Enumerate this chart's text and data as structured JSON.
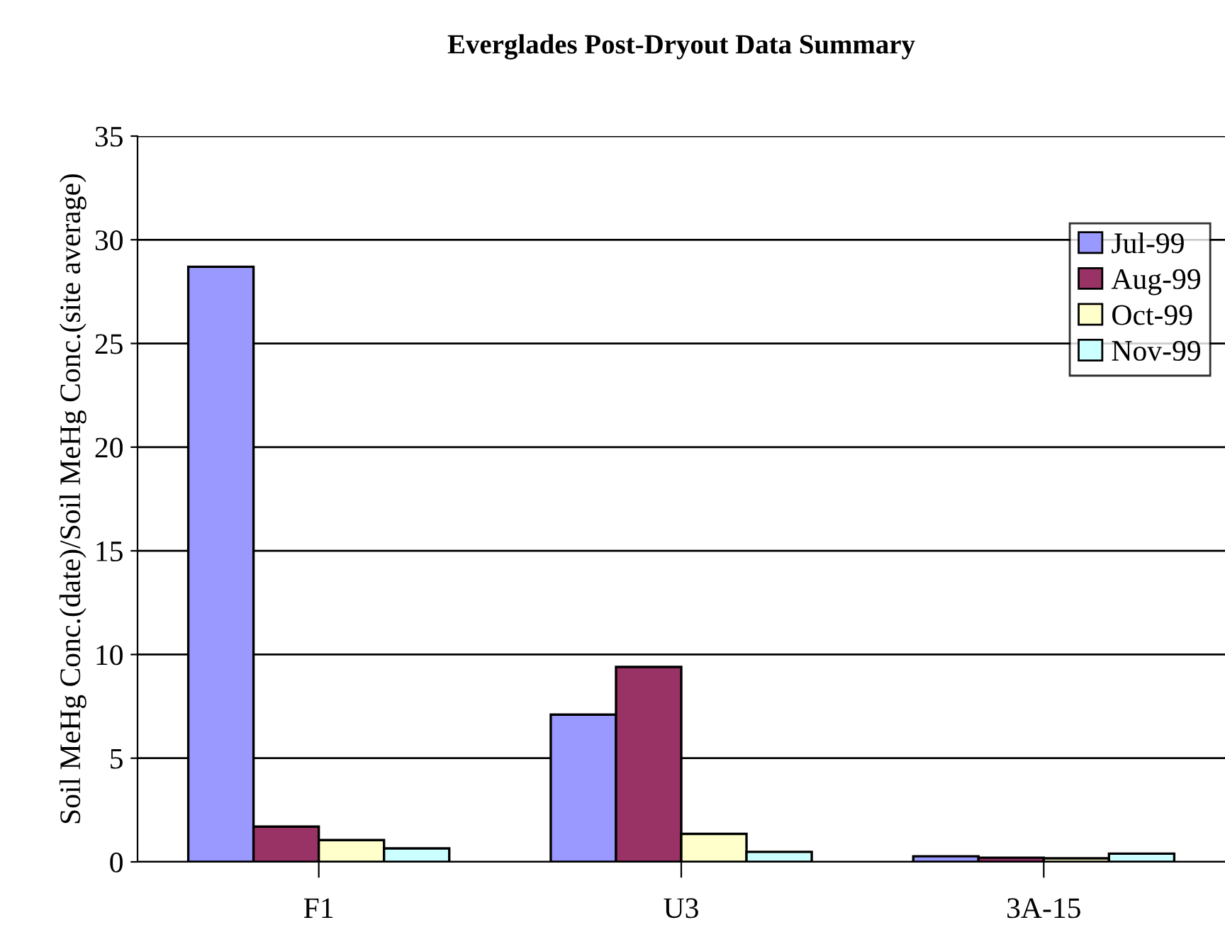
{
  "chart_data": {
    "type": "bar",
    "title": "Everglades Post-Dryout Data Summary",
    "ylabel": "Soil MeHg Conc.(date)/Soil MeHg Conc.(site average)",
    "categories": [
      "F1",
      "U3",
      "3A-15"
    ],
    "series": [
      {
        "name": "Jul-99",
        "color": "#9999ff",
        "values": [
          28.7,
          7.1,
          0.27
        ]
      },
      {
        "name": "Aug-99",
        "color": "#993366",
        "values": [
          1.7,
          9.4,
          0.2
        ]
      },
      {
        "name": "Oct-99",
        "color": "#ffffcc",
        "values": [
          1.05,
          1.35,
          0.17
        ]
      },
      {
        "name": "Nov-99",
        "color": "#ccffff",
        "values": [
          0.65,
          0.48,
          0.4
        ]
      }
    ],
    "ylim": [
      0,
      35
    ],
    "yticks": [
      0,
      5,
      10,
      15,
      20,
      25,
      30,
      35
    ],
    "grid": "y",
    "legend": "top right"
  }
}
